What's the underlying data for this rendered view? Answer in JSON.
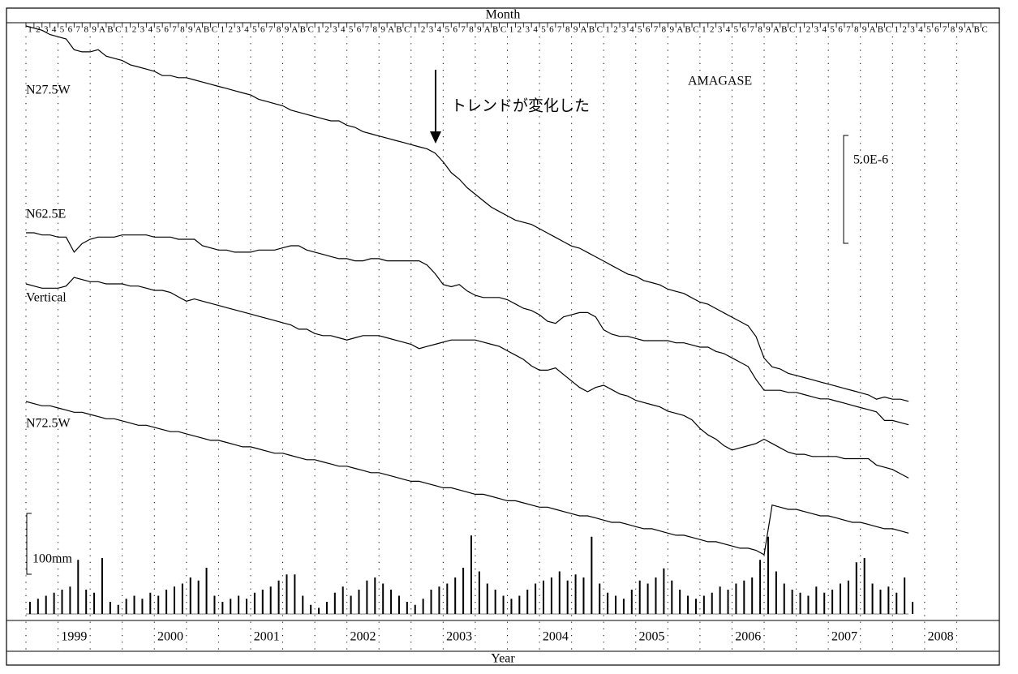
{
  "chart_data": {
    "type": "line",
    "title": "AMAGASE",
    "annotation": "トレンドが変化した",
    "xlabel": "Year",
    "x2label": "Month",
    "month_labels": [
      "1",
      "2",
      "3",
      "4",
      "5",
      "6",
      "7",
      "8",
      "9",
      "A",
      "B",
      "C"
    ],
    "year_labels": [
      "1999",
      "2000",
      "2001",
      "2002",
      "2003",
      "2004",
      "2005",
      "2006",
      "2007",
      "2008"
    ],
    "xlim": [
      "1999-01",
      "2009-01"
    ],
    "xticks": [
      "1999-01",
      "1999-05",
      "1999-09",
      "2000-01",
      "2000-05",
      "2000-09",
      "2001-01",
      "2001-05",
      "2001-09",
      "2002-01",
      "2002-05",
      "2002-09",
      "2003-01",
      "2003-05",
      "2003-09",
      "2004-01",
      "2004-05",
      "2004-09",
      "2005-01",
      "2005-05",
      "2005-09",
      "2006-01",
      "2006-05",
      "2006-09",
      "2007-01",
      "2007-05",
      "2007-09",
      "2008-01",
      "2008-05",
      "2008-09"
    ],
    "grid": true,
    "scale_bar": {
      "value": 5e-06,
      "label": "5.0E-6"
    },
    "x": [
      "1999-01",
      "1999-02",
      "1999-03",
      "1999-04",
      "1999-05",
      "1999-06",
      "1999-07",
      "1999-08",
      "1999-09",
      "1999-10",
      "1999-11",
      "1999-12",
      "2000-01",
      "2000-02",
      "2000-03",
      "2000-04",
      "2000-05",
      "2000-06",
      "2000-07",
      "2000-08",
      "2000-09",
      "2000-10",
      "2000-11",
      "2000-12",
      "2001-01",
      "2001-02",
      "2001-03",
      "2001-04",
      "2001-05",
      "2001-06",
      "2001-07",
      "2001-08",
      "2001-09",
      "2001-10",
      "2001-11",
      "2001-12",
      "2002-01",
      "2002-02",
      "2002-03",
      "2002-04",
      "2002-05",
      "2002-06",
      "2002-07",
      "2002-08",
      "2002-09",
      "2002-10",
      "2002-11",
      "2002-12",
      "2003-01",
      "2003-02",
      "2003-03",
      "2003-04",
      "2003-05",
      "2003-06",
      "2003-07",
      "2003-08",
      "2003-09",
      "2003-10",
      "2003-11",
      "2003-12",
      "2004-01",
      "2004-02",
      "2004-03",
      "2004-04",
      "2004-05",
      "2004-06",
      "2004-07",
      "2004-08",
      "2004-09",
      "2004-10",
      "2004-11",
      "2004-12",
      "2005-01",
      "2005-02",
      "2005-03",
      "2005-04",
      "2005-05",
      "2005-06",
      "2005-07",
      "2005-08",
      "2005-09",
      "2005-10",
      "2005-11",
      "2005-12",
      "2006-01",
      "2006-02",
      "2006-03",
      "2006-04",
      "2006-05",
      "2006-06",
      "2006-07",
      "2006-08",
      "2006-09",
      "2006-10",
      "2006-11",
      "2006-12",
      "2007-01",
      "2007-02",
      "2007-03",
      "2007-04",
      "2007-05",
      "2007-06",
      "2007-07",
      "2007-08",
      "2007-09",
      "2007-10",
      "2007-11",
      "2007-12",
      "2008-01",
      "2008-02",
      "2008-03"
    ],
    "series": [
      {
        "name": "N27.5W",
        "color": "#000000",
        "values": [
          0,
          -1e-07,
          -2e-07,
          -4e-07,
          -5e-07,
          -6e-07,
          -1.1e-06,
          -1.2e-06,
          -1.2e-06,
          -1.1e-06,
          -1.4e-06,
          -1.5e-06,
          -1.6e-06,
          -1.8e-06,
          -1.9e-06,
          -2e-06,
          -2.1e-06,
          -2.3e-06,
          -2.3e-06,
          -2.4e-06,
          -2.4e-06,
          -2.5e-06,
          -2.6e-06,
          -2.7e-06,
          -2.8e-06,
          -2.9e-06,
          -3e-06,
          -3.1e-06,
          -3.2e-06,
          -3.4e-06,
          -3.5e-06,
          -3.6e-06,
          -3.7e-06,
          -3.9e-06,
          -4e-06,
          -4.1e-06,
          -4.2e-06,
          -4.3e-06,
          -4.4e-06,
          -4.4e-06,
          -4.6e-06,
          -4.7e-06,
          -4.9e-06,
          -5e-06,
          -5.1e-06,
          -5.2e-06,
          -5.3e-06,
          -5.4e-06,
          -5.5e-06,
          -5.6e-06,
          -5.7e-06,
          -5.9e-06,
          -6.3e-06,
          -6.8e-06,
          -7.1e-06,
          -7.5e-06,
          -7.8e-06,
          -8.1e-06,
          -8.4e-06,
          -8.6e-06,
          -8.8e-06,
          -9e-06,
          -9.1e-06,
          -9.2e-06,
          -9.4e-06,
          -9.6e-06,
          -9.8e-06,
          -1e-05,
          -1.02e-05,
          -1.03e-05,
          -1.05e-05,
          -1.07e-05,
          -1.09e-05,
          -1.11e-05,
          -1.13e-05,
          -1.15e-05,
          -1.16e-05,
          -1.18e-05,
          -1.19e-05,
          -1.2e-05,
          -1.22e-05,
          -1.23e-05,
          -1.24e-05,
          -1.26e-05,
          -1.28e-05,
          -1.29e-05,
          -1.31e-05,
          -1.33e-05,
          -1.35e-05,
          -1.37e-05,
          -1.39e-05,
          -1.44e-05,
          -1.54e-05,
          -1.58e-05,
          -1.59e-05,
          -1.61e-05,
          -1.62e-05,
          -1.63e-05,
          -1.64e-05,
          -1.65e-05,
          -1.66e-05,
          -1.67e-05,
          -1.68e-05,
          -1.69e-05,
          -1.7e-05,
          -1.71e-05,
          -1.73e-05,
          -1.72e-05,
          -1.73e-05,
          -1.73e-05,
          -1.74e-05
        ]
      },
      {
        "name": "N62.5E",
        "color": "#000000",
        "values": [
          0,
          0,
          -1e-07,
          -1e-07,
          -2e-07,
          -2e-07,
          -9e-07,
          -5e-07,
          -3e-07,
          -2e-07,
          -2e-07,
          -2e-07,
          -1e-07,
          -1e-07,
          -1e-07,
          -1e-07,
          -2e-07,
          -2e-07,
          -2e-07,
          -3e-07,
          -3e-07,
          -3e-07,
          -6e-07,
          -7e-07,
          -8e-07,
          -8e-07,
          -9e-07,
          -9e-07,
          -9e-07,
          -8e-07,
          -8e-07,
          -8e-07,
          -7e-07,
          -6e-07,
          -6e-07,
          -8e-07,
          -9e-07,
          -1e-06,
          -1.1e-06,
          -1.2e-06,
          -1.2e-06,
          -1.3e-06,
          -1.3e-06,
          -1.2e-06,
          -1.2e-06,
          -1.3e-06,
          -1.3e-06,
          -1.3e-06,
          -1.3e-06,
          -1.3e-06,
          -1.5e-06,
          -1.9e-06,
          -2.4e-06,
          -2.5e-06,
          -2.4e-06,
          -2.7e-06,
          -2.9e-06,
          -3e-06,
          -3e-06,
          -3e-06,
          -3.1e-06,
          -3.3e-06,
          -3.5e-06,
          -3.6e-06,
          -3.8e-06,
          -4.1e-06,
          -4.2e-06,
          -3.9e-06,
          -3.8e-06,
          -3.7e-06,
          -3.7e-06,
          -3.9e-06,
          -4.5e-06,
          -4.7e-06,
          -4.8e-06,
          -4.8e-06,
          -4.9e-06,
          -5e-06,
          -5e-06,
          -5e-06,
          -5e-06,
          -5.1e-06,
          -5.1e-06,
          -5.2e-06,
          -5.3e-06,
          -5.3e-06,
          -5.5e-06,
          -5.6e-06,
          -5.8e-06,
          -6e-06,
          -6.2e-06,
          -6.8e-06,
          -7.3e-06,
          -7.3e-06,
          -7.3e-06,
          -7.4e-06,
          -7.4e-06,
          -7.5e-06,
          -7.6e-06,
          -7.7e-06,
          -7.7e-06,
          -7.8e-06,
          -7.9e-06,
          -8e-06,
          -8.1e-06,
          -8.2e-06,
          -8.3e-06,
          -8.7e-06,
          -8.7e-06,
          -8.8e-06,
          -8.9e-06
        ]
      },
      {
        "name": "Vertical",
        "color": "#000000",
        "values": [
          0,
          -1e-07,
          -2e-07,
          -2e-07,
          -2e-07,
          -1e-07,
          3e-07,
          2e-07,
          1e-07,
          1e-07,
          0,
          0,
          0,
          -1e-07,
          -1e-07,
          -2e-07,
          -3e-07,
          -3e-07,
          -4e-07,
          -6e-07,
          -8e-07,
          -7e-07,
          -8e-07,
          -9e-07,
          -1e-06,
          -1.1e-06,
          -1.2e-06,
          -1.3e-06,
          -1.4e-06,
          -1.5e-06,
          -1.6e-06,
          -1.7e-06,
          -1.8e-06,
          -1.9e-06,
          -2.1e-06,
          -2.1e-06,
          -2.3e-06,
          -2.4e-06,
          -2.4e-06,
          -2.5e-06,
          -2.6e-06,
          -2.5e-06,
          -2.4e-06,
          -2.4e-06,
          -2.4e-06,
          -2.5e-06,
          -2.6e-06,
          -2.7e-06,
          -2.8e-06,
          -3e-06,
          -2.9e-06,
          -2.8e-06,
          -2.7e-06,
          -2.6e-06,
          -2.6e-06,
          -2.6e-06,
          -2.6e-06,
          -2.7e-06,
          -2.8e-06,
          -2.9e-06,
          -3.1e-06,
          -3.3e-06,
          -3.5e-06,
          -3.8e-06,
          -4e-06,
          -4e-06,
          -3.9e-06,
          -4.2e-06,
          -4.5e-06,
          -4.8e-06,
          -5e-06,
          -4.8e-06,
          -4.7e-06,
          -4.9e-06,
          -5.1e-06,
          -5.2e-06,
          -5.4e-06,
          -5.5e-06,
          -5.6e-06,
          -5.7e-06,
          -5.9e-06,
          -6e-06,
          -6.1e-06,
          -6.3e-06,
          -6.7e-06,
          -7e-06,
          -7.2e-06,
          -7.5e-06,
          -7.7e-06,
          -7.6e-06,
          -7.5e-06,
          -7.4e-06,
          -7.2e-06,
          -7.4e-06,
          -7.6e-06,
          -7.8e-06,
          -7.9e-06,
          -7.9e-06,
          -8e-06,
          -8e-06,
          -8e-06,
          -8e-06,
          -8.1e-06,
          -8.1e-06,
          -8.1e-06,
          -8.1e-06,
          -8.4e-06,
          -8.5e-06,
          -8.6e-06,
          -8.8e-06,
          -9e-06
        ]
      },
      {
        "name": "N72.5W",
        "color": "#000000",
        "values": [
          0,
          -1e-07,
          -2e-07,
          -2e-07,
          -3e-07,
          -4e-07,
          -5e-07,
          -5e-07,
          -6e-07,
          -7e-07,
          -8e-07,
          -8e-07,
          -9e-07,
          -1e-06,
          -1.1e-06,
          -1.1e-06,
          -1.2e-06,
          -1.3e-06,
          -1.4e-06,
          -1.4e-06,
          -1.5e-06,
          -1.6e-06,
          -1.7e-06,
          -1.8e-06,
          -1.8e-06,
          -1.9e-06,
          -2e-06,
          -2.1e-06,
          -2.1e-06,
          -2.2e-06,
          -2.3e-06,
          -2.4e-06,
          -2.4e-06,
          -2.5e-06,
          -2.6e-06,
          -2.7e-06,
          -2.7e-06,
          -2.8e-06,
          -2.9e-06,
          -3e-06,
          -3e-06,
          -3.1e-06,
          -3.2e-06,
          -3.3e-06,
          -3.3e-06,
          -3.4e-06,
          -3.5e-06,
          -3.6e-06,
          -3.7e-06,
          -3.7e-06,
          -3.8e-06,
          -3.9e-06,
          -4e-06,
          -4e-06,
          -4.1e-06,
          -4.2e-06,
          -4.3e-06,
          -4.3e-06,
          -4.4e-06,
          -4.5e-06,
          -4.6e-06,
          -4.6e-06,
          -4.7e-06,
          -4.8e-06,
          -4.9e-06,
          -4.9e-06,
          -5e-06,
          -5.1e-06,
          -5.2e-06,
          -5.3e-06,
          -5.3e-06,
          -5.4e-06,
          -5.5e-06,
          -5.6e-06,
          -5.6e-06,
          -5.7e-06,
          -5.8e-06,
          -5.9e-06,
          -5.9e-06,
          -6e-06,
          -6.1e-06,
          -6.2e-06,
          -6.2e-06,
          -6.3e-06,
          -6.4e-06,
          -6.5e-06,
          -6.5e-06,
          -6.6e-06,
          -6.7e-06,
          -6.8e-06,
          -6.8e-06,
          -6.9e-06,
          -7.1e-06,
          -4.8e-06,
          -4.9e-06,
          -5e-06,
          -5e-06,
          -5.1e-06,
          -5.2e-06,
          -5.3e-06,
          -5.3e-06,
          -5.4e-06,
          -5.5e-06,
          -5.6e-06,
          -5.6e-06,
          -5.7e-06,
          -5.8e-06,
          -5.9e-06,
          -5.9e-06,
          -6e-06,
          -6.1e-06
        ]
      }
    ],
    "rain": {
      "color": "#000000",
      "scale_bar": {
        "value": 100,
        "label": "100mm"
      },
      "values": [
        20,
        25,
        30,
        35,
        40,
        45,
        89,
        40,
        35,
        92,
        20,
        15,
        25,
        30,
        25,
        35,
        30,
        40,
        45,
        50,
        60,
        55,
        76,
        30,
        20,
        25,
        30,
        25,
        35,
        40,
        45,
        55,
        65,
        65,
        30,
        15,
        10,
        20,
        35,
        45,
        30,
        40,
        55,
        60,
        50,
        40,
        30,
        20,
        15,
        25,
        40,
        45,
        50,
        60,
        76,
        129,
        70,
        50,
        40,
        30,
        25,
        30,
        40,
        50,
        55,
        60,
        70,
        55,
        65,
        60,
        127,
        50,
        35,
        30,
        25,
        40,
        55,
        50,
        60,
        75,
        55,
        40,
        30,
        25,
        30,
        35,
        45,
        40,
        50,
        55,
        60,
        89,
        127,
        70,
        50,
        40,
        35,
        30,
        45,
        35,
        40,
        50,
        55,
        85,
        92,
        50,
        40,
        45,
        35,
        60,
        20
      ]
    }
  }
}
